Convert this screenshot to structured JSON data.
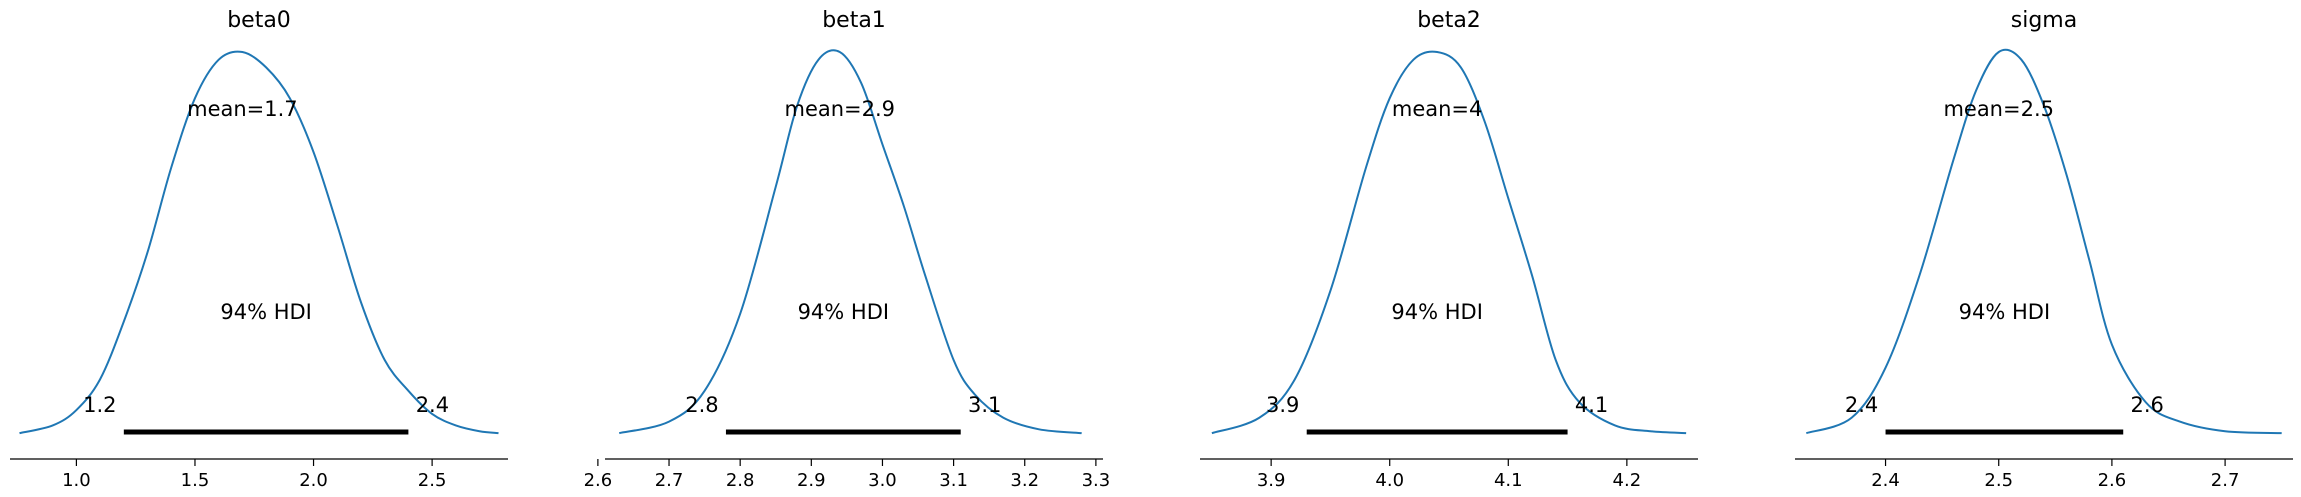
{
  "chart_data": [
    {
      "type": "line",
      "title": "beta0",
      "mean_label": "mean=1.7",
      "hdi_label": "94% HDI",
      "hdi": [
        1.2,
        2.4
      ],
      "hdi_low_label": "1.2",
      "hdi_high_label": "2.4",
      "xlim": [
        0.72,
        2.82
      ],
      "ticks": [
        1.0,
        1.5,
        2.0,
        2.5
      ],
      "tick_labels": [
        "1.0",
        "1.5",
        "2.0",
        "2.5"
      ],
      "curve_range": [
        0.76,
        2.78
      ],
      "density_x": [
        0.76,
        0.9,
        1.0,
        1.1,
        1.2,
        1.3,
        1.4,
        1.5,
        1.6,
        1.7,
        1.8,
        1.9,
        2.0,
        2.1,
        2.2,
        2.3,
        2.4,
        2.5,
        2.6,
        2.7,
        2.78
      ],
      "density_y": [
        0.01,
        0.03,
        0.07,
        0.15,
        0.3,
        0.48,
        0.7,
        0.88,
        0.98,
        1.0,
        0.96,
        0.88,
        0.74,
        0.55,
        0.35,
        0.2,
        0.12,
        0.06,
        0.03,
        0.015,
        0.01
      ],
      "color": "#1f77b4"
    },
    {
      "type": "line",
      "title": "beta1",
      "mean_label": "mean=2.9",
      "hdi_label": "94% HDI",
      "hdi": [
        2.78,
        3.11
      ],
      "hdi_low_label": "2.8",
      "hdi_high_label": "3.1",
      "xlim": [
        2.61,
        3.31
      ],
      "ticks": [
        2.6,
        2.7,
        2.8,
        2.9,
        3.0,
        3.1,
        3.2,
        3.3
      ],
      "tick_labels": [
        "2.6",
        "2.7",
        "2.8",
        "2.9",
        "3.0",
        "3.1",
        "3.2",
        "3.3"
      ],
      "curve_range": [
        2.63,
        3.28
      ],
      "density_x": [
        2.63,
        2.7,
        2.75,
        2.8,
        2.85,
        2.88,
        2.91,
        2.94,
        2.97,
        3.0,
        3.03,
        3.06,
        3.1,
        3.13,
        3.17,
        3.22,
        3.28
      ],
      "density_y": [
        0.01,
        0.04,
        0.12,
        0.32,
        0.65,
        0.86,
        0.98,
        1.0,
        0.92,
        0.76,
        0.6,
        0.42,
        0.2,
        0.11,
        0.05,
        0.02,
        0.01
      ],
      "color": "#1f77b4"
    },
    {
      "type": "line",
      "title": "beta2",
      "mean_label": "mean=4",
      "hdi_label": "94% HDI",
      "hdi": [
        3.93,
        4.15
      ],
      "hdi_low_label": "3.9",
      "hdi_high_label": "4.1",
      "xlim": [
        3.84,
        4.26
      ],
      "ticks": [
        3.9,
        4.0,
        4.1,
        4.2
      ],
      "tick_labels": [
        "3.9",
        "4.0",
        "4.1",
        "4.2"
      ],
      "curve_range": [
        3.85,
        4.25
      ],
      "density_x": [
        3.85,
        3.89,
        3.92,
        3.95,
        3.98,
        4.0,
        4.02,
        4.04,
        4.06,
        4.08,
        4.1,
        4.12,
        4.14,
        4.16,
        4.19,
        4.22,
        4.25
      ],
      "density_y": [
        0.01,
        0.05,
        0.15,
        0.38,
        0.7,
        0.88,
        0.98,
        1.0,
        0.96,
        0.82,
        0.62,
        0.42,
        0.2,
        0.09,
        0.03,
        0.015,
        0.01
      ],
      "color": "#1f77b4"
    },
    {
      "type": "line",
      "title": "sigma",
      "mean_label": "mean=2.5",
      "hdi_label": "94% HDI",
      "hdi": [
        2.4,
        2.61
      ],
      "hdi_low_label": "2.4",
      "hdi_high_label": "2.6",
      "xlim": [
        2.32,
        2.76
      ],
      "ticks": [
        2.4,
        2.5,
        2.6,
        2.7
      ],
      "tick_labels": [
        "2.4",
        "2.5",
        "2.6",
        "2.7"
      ],
      "curve_range": [
        2.33,
        2.75
      ],
      "density_x": [
        2.33,
        2.37,
        2.4,
        2.43,
        2.46,
        2.48,
        2.5,
        2.52,
        2.54,
        2.56,
        2.58,
        2.6,
        2.63,
        2.66,
        2.7,
        2.75
      ],
      "density_y": [
        0.01,
        0.05,
        0.18,
        0.42,
        0.72,
        0.9,
        1.0,
        0.98,
        0.86,
        0.68,
        0.46,
        0.24,
        0.09,
        0.04,
        0.015,
        0.01
      ],
      "color": "#1f77b4"
    }
  ]
}
